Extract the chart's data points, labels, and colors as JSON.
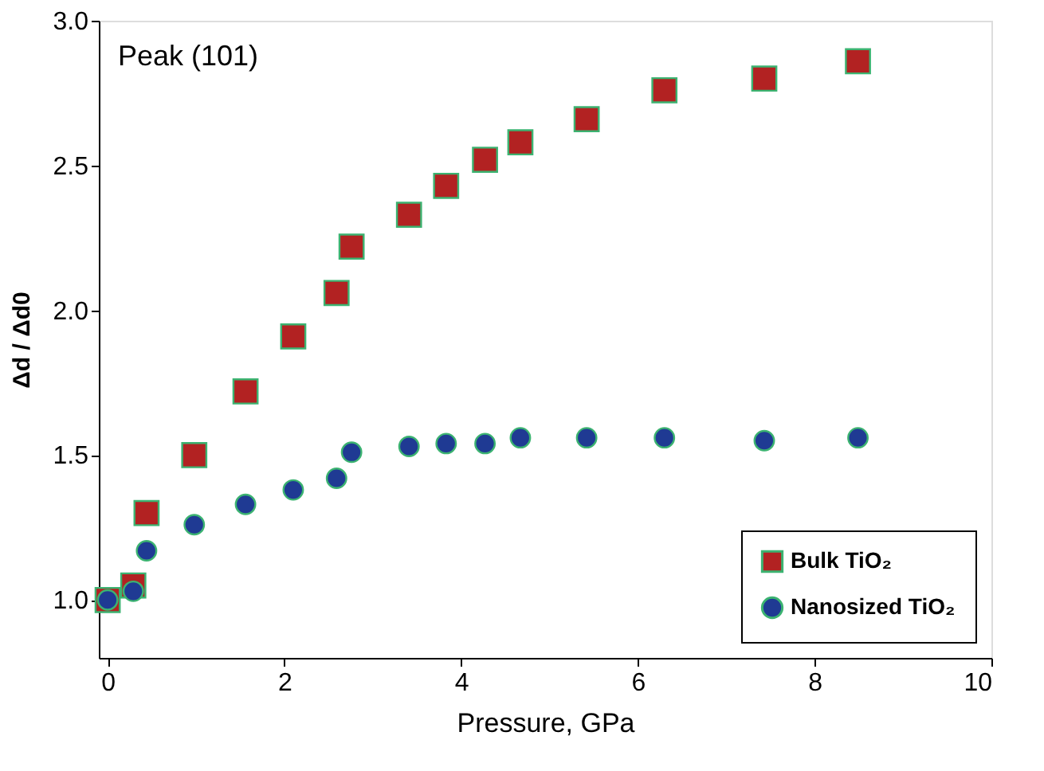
{
  "chart_data": {
    "type": "scatter",
    "xlabel": "Pressure, GPa",
    "ylabel": "Δd / Δd0",
    "annotations": [
      "Peak (101)"
    ],
    "series": [
      {
        "name": "Bulk TiO₂",
        "color": "#b22222",
        "marker": "square",
        "x": [
          0,
          0.29,
          0.44,
          0.98,
          1.56,
          2.1,
          2.59,
          2.76,
          3.41,
          3.83,
          4.27,
          4.67,
          5.42,
          6.3,
          7.43,
          8.49
        ],
        "values": [
          1.0,
          1.05,
          1.3,
          1.5,
          1.72,
          1.91,
          2.06,
          2.22,
          2.33,
          2.43,
          2.52,
          2.58,
          2.66,
          2.76,
          2.8,
          2.86
        ]
      },
      {
        "name": "Nanosized TiO₂",
        "color": "#1f3a93",
        "marker": "circle",
        "x": [
          0,
          0.29,
          0.44,
          0.98,
          1.56,
          2.1,
          2.59,
          2.76,
          3.41,
          3.83,
          4.27,
          4.67,
          5.42,
          6.3,
          7.43,
          8.49
        ],
        "values": [
          1.0,
          1.03,
          1.17,
          1.26,
          1.33,
          1.38,
          1.42,
          1.51,
          1.53,
          1.54,
          1.54,
          1.56,
          1.56,
          1.56,
          1.55,
          1.56
        ]
      }
    ],
    "xlim": [
      -0.1,
      10
    ],
    "xticks": [
      0,
      2,
      4,
      6,
      8,
      10
    ],
    "ylim": [
      0.8,
      3.0
    ],
    "yticks": [
      {
        "value": 1.0,
        "label": "1.0"
      },
      1.5,
      {
        "value": 2.0,
        "label": "2.0"
      },
      2.5,
      {
        "value": 3.0,
        "label": "3.0"
      }
    ],
    "grid": false,
    "legend": "bottom right"
  }
}
